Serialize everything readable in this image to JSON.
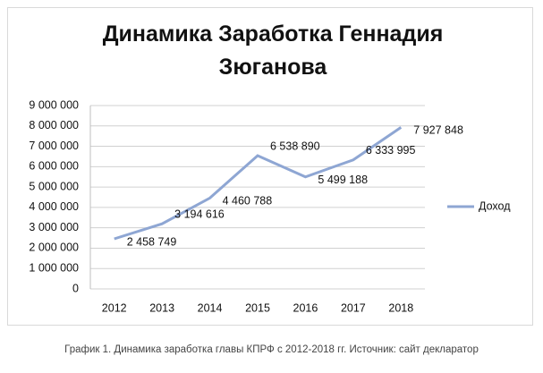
{
  "chart_data": {
    "type": "line",
    "title": "Динамика Заработка Геннадия Зюганова",
    "categories": [
      "2012",
      "2013",
      "2014",
      "2015",
      "2016",
      "2017",
      "2018"
    ],
    "series": [
      {
        "name": "Доход",
        "color": "#8ea6d3",
        "values": [
          2458749,
          3194616,
          4460788,
          6538890,
          5499188,
          6333995,
          7927848
        ],
        "value_labels": [
          "2 458 749",
          "3 194 616",
          "4 460 788",
          "6 538 890",
          "5 499 188",
          "6 333 995",
          "7 927 848"
        ]
      }
    ],
    "ylim": [
      0,
      9000000
    ],
    "yticks": [
      0,
      {
        "value": 1000000,
        "label": "1 000 000"
      },
      {
        "value": 2000000,
        "label": "2 000 000"
      },
      {
        "value": 3000000,
        "label": "3 000 000"
      },
      {
        "value": 4000000,
        "label": "4 000 000"
      },
      {
        "value": 5000000,
        "label": "5 000 000"
      },
      {
        "value": 6000000,
        "label": "6 000 000"
      },
      {
        "value": 7000000,
        "label": "7 000 000"
      },
      {
        "value": 8000000,
        "label": "8 000 000"
      },
      {
        "value": 9000000,
        "label": "9 000 000"
      }
    ],
    "grid": true,
    "legend": "right",
    "caption": "График 1. Динамика заработка главы КПРФ с 2012-2018 гг. Источник: сайт декларатор"
  }
}
